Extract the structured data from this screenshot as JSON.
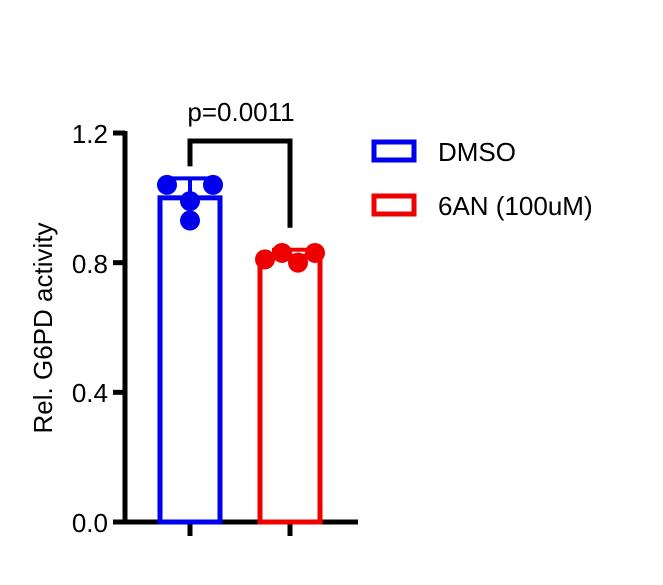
{
  "chart_data": {
    "type": "bar",
    "categories": [
      "DMSO",
      "6AN (100uM)"
    ],
    "series": [
      {
        "name": "DMSO",
        "color": "#0000ee",
        "mean": 1.0,
        "error": 0.06,
        "points": [
          1.04,
          1.04,
          0.99,
          0.93
        ]
      },
      {
        "name": "6AN (100uM)",
        "color": "#ee0000",
        "mean": 0.82,
        "error": 0.02,
        "points": [
          0.81,
          0.83,
          0.8,
          0.83
        ]
      }
    ],
    "ylabel": "Rel. G6PD activity",
    "ylim": [
      0,
      1.2
    ],
    "yticks": [
      "0.0",
      "0.4",
      "0.8",
      "1.2"
    ],
    "annotation": "p=0.0011",
    "legend": "right",
    "grid": false
  }
}
